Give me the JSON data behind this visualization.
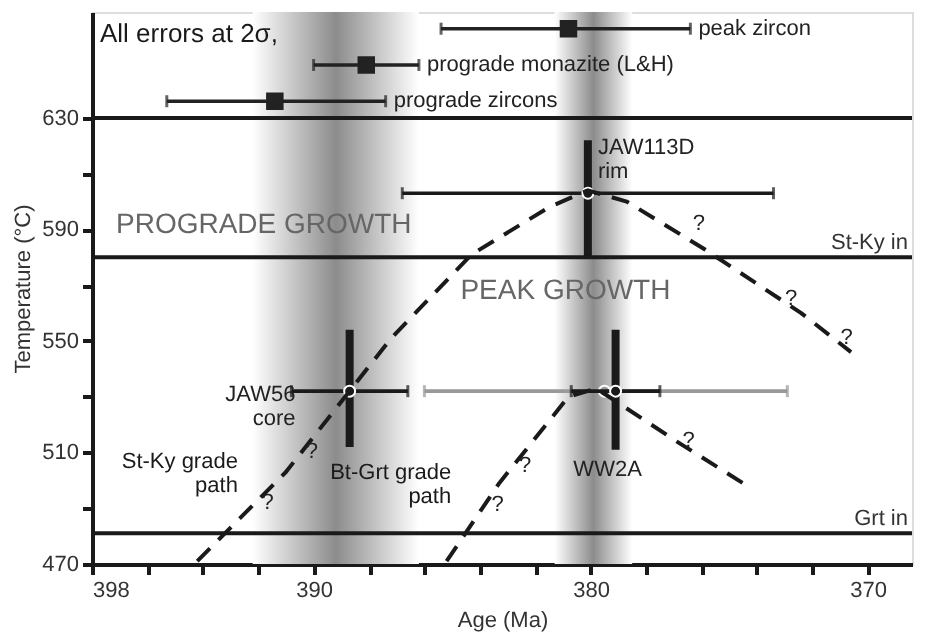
{
  "chart_data": {
    "type": "scatter",
    "xlabel": "Age (Ma)",
    "ylabel": "Temperature (°C)",
    "xlim": [
      398,
      368.4
    ],
    "ylim": [
      470,
      668
    ],
    "xticks": [
      398,
      {
        "value": 396,
        "label": null
      },
      {
        "value": 394,
        "label": null
      },
      {
        "value": 392,
        "label": null
      },
      390,
      {
        "value": 388,
        "label": null
      },
      {
        "value": 386,
        "label": null
      },
      {
        "value": 384,
        "label": null
      },
      {
        "value": 382,
        "label": null
      },
      380,
      {
        "value": 378,
        "label": null
      },
      {
        "value": 376,
        "label": null
      },
      {
        "value": 374,
        "label": null
      },
      {
        "value": 372,
        "label": null
      },
      370
    ],
    "yticks": [
      470,
      {
        "value": 490,
        "label": null
      },
      510,
      {
        "value": 530,
        "label": null
      },
      550,
      {
        "value": 570,
        "label": null
      },
      590,
      {
        "value": 610,
        "label": null
      },
      630
    ],
    "grid": false,
    "series": [
      {
        "color": "#222222",
        "marker": "square",
        "x": [
          380.8
        ],
        "values": [
          662
        ],
        "xerrors": [
          [
            376.4,
            385.4
          ]
        ]
      },
      {
        "color": "#222222",
        "marker": "square",
        "x": [
          388.1
        ],
        "values": [
          649
        ],
        "xerrors": [
          [
            386.2,
            390.0
          ]
        ]
      },
      {
        "color": "#222222",
        "marker": "square",
        "x": [
          391.4
        ],
        "values": [
          636
        ],
        "xerrors": [
          [
            387.4,
            395.3
          ]
        ]
      },
      {
        "color": "#999999",
        "marker": "circle",
        "x": [
          379.5
        ],
        "values": [
          532
        ],
        "xerrors": [
          [
            372.9,
            386.0
          ]
        ]
      },
      {
        "color": "#1a1a1a",
        "marker": "circle",
        "x": [
          380.1
        ],
        "values": [
          603
        ],
        "xerrors": [
          [
            373.4,
            386.8
          ]
        ],
        "errors": [
          [
            580,
            622
          ]
        ]
      },
      {
        "color": "#1a1a1a",
        "marker": "circle",
        "x": [
          388.7
        ],
        "values": [
          532
        ],
        "xerrors": [
          [
            386.6,
            390.8
          ]
        ],
        "errors": [
          [
            512,
            554
          ]
        ]
      },
      {
        "color": "#1a1a1a",
        "marker": "circle",
        "x": [
          379.1
        ],
        "values": [
          532
        ],
        "xerrors": [
          [
            377.5,
            380.7
          ]
        ],
        "errors": [
          [
            511,
            554
          ]
        ]
      },
      {
        "name": "St-Ky grade\npath",
        "type": "line",
        "color": "#1a1a1a",
        "line_style": "dashed",
        "x": [
          394.2,
          391.0,
          387.2,
          384.3,
          381.5,
          380.1,
          378.7,
          375.9,
          372.4,
          370.6
        ],
        "values": [
          471,
          503,
          551,
          581,
          598,
          604,
          600,
          583,
          560,
          546
        ]
      },
      {
        "name": "Bt-Grt grade\npath",
        "type": "line",
        "color": "#1a1a1a",
        "line_style": "dashed",
        "x": [
          385.2,
          383.3,
          380.8,
          379.8,
          376.9,
          374.5
        ],
        "values": [
          471,
          499,
          530,
          533,
          514,
          499
        ]
      }
    ],
    "ref_lines": [
      {
        "axis": "y",
        "value": 630,
        "label": null,
        "color": "#1a1a1a"
      },
      {
        "axis": "y",
        "value": 580,
        "label": "St-Ky in",
        "color": "#1a1a1a"
      },
      {
        "axis": "y",
        "value": 481,
        "label": "Grt in",
        "color": "#1a1a1a"
      }
    ],
    "bands": [
      {
        "axis": "x",
        "from": 392.2,
        "to": 386.2,
        "label": "PROGRADE GROWTH",
        "color": "#8c8c8c"
      },
      {
        "axis": "x",
        "from": 381.3,
        "to": 378.5,
        "label": "PEAK GROWTH",
        "color": "#8c8c8c"
      }
    ],
    "annotations": [
      "All errors at 2σ,",
      {
        "text": "peak zircon",
        "x": 376.4,
        "y": 662
      },
      {
        "text": "prograde monazite (L&H)",
        "x": 386.2,
        "y": 649
      },
      {
        "text": "prograde zircons",
        "x": 387.4,
        "y": 636
      },
      {
        "text": "JAW113D\nrim",
        "x": 380.1,
        "y": 622
      },
      {
        "text": "JAW56\ncore",
        "x": 390.8,
        "y": 532
      },
      {
        "text": "WW2A",
        "x": 379.1,
        "y": 511
      },
      {
        "text": "?",
        "x": 392.1,
        "y": 492
      },
      {
        "text": "?",
        "x": 390.5,
        "y": 510
      },
      {
        "text": "?",
        "x": 376.6,
        "y": 587
      },
      {
        "text": "?",
        "x": 373.2,
        "y": 565
      },
      {
        "text": "?",
        "x": 371.2,
        "y": 551
      },
      {
        "text": "?",
        "x": 382.8,
        "y": 505
      },
      {
        "text": "?",
        "x": 383.8,
        "y": 491
      },
      {
        "text": "?",
        "x": 376.9,
        "y": 514
      }
    ]
  }
}
